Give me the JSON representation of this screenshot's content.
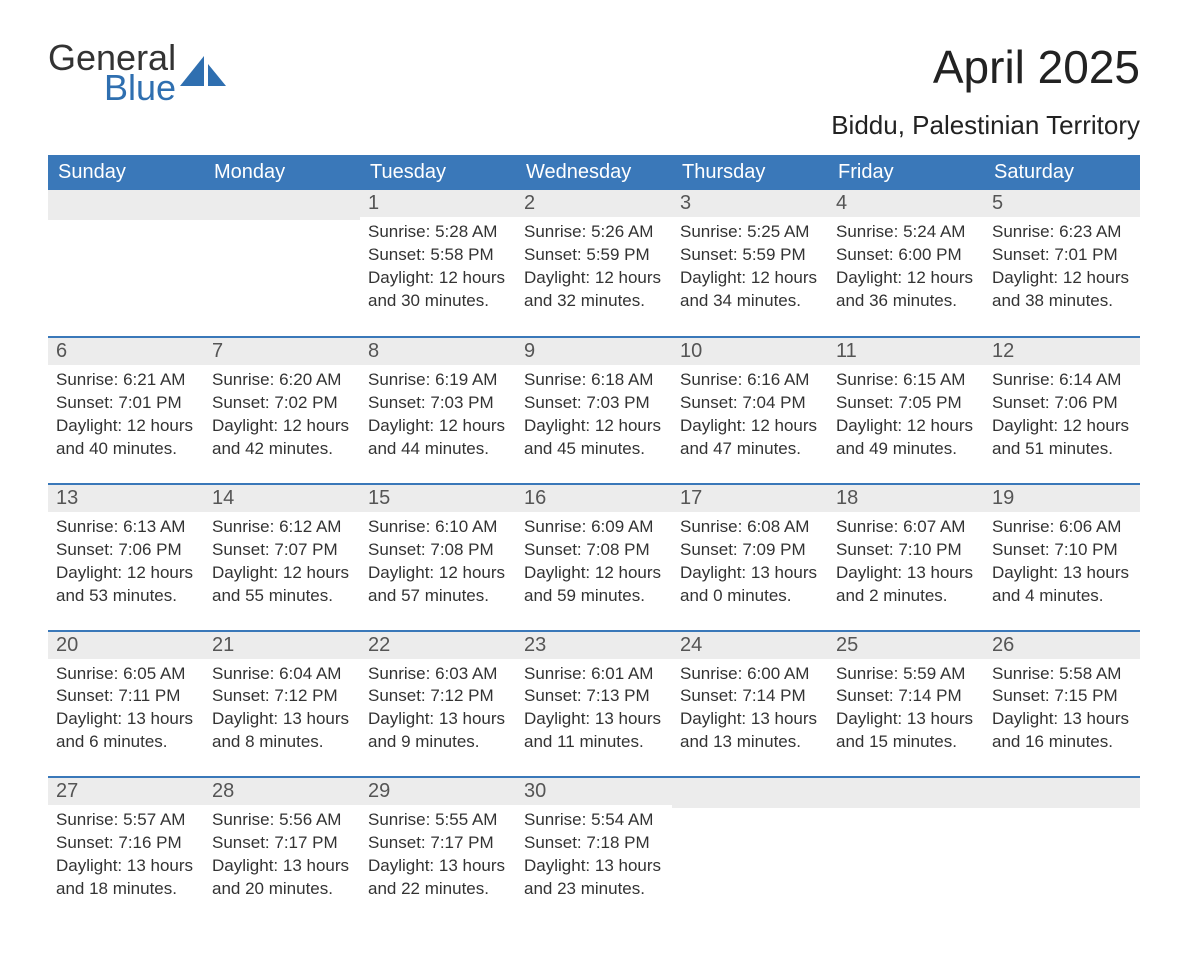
{
  "brand": {
    "word1": "General",
    "word2": "Blue",
    "accent_color": "#2f6fb0"
  },
  "title": "April 2025",
  "location": "Biddu, Palestinian Territory",
  "header_bg": "#3a78b9",
  "daynum_bg": "#ececec",
  "day_headers": [
    "Sunday",
    "Monday",
    "Tuesday",
    "Wednesday",
    "Thursday",
    "Friday",
    "Saturday"
  ],
  "weeks": [
    [
      null,
      null,
      {
        "n": "1",
        "sunrise": "5:28 AM",
        "sunset": "5:58 PM",
        "daylight": "12 hours and 30 minutes."
      },
      {
        "n": "2",
        "sunrise": "5:26 AM",
        "sunset": "5:59 PM",
        "daylight": "12 hours and 32 minutes."
      },
      {
        "n": "3",
        "sunrise": "5:25 AM",
        "sunset": "5:59 PM",
        "daylight": "12 hours and 34 minutes."
      },
      {
        "n": "4",
        "sunrise": "5:24 AM",
        "sunset": "6:00 PM",
        "daylight": "12 hours and 36 minutes."
      },
      {
        "n": "5",
        "sunrise": "6:23 AM",
        "sunset": "7:01 PM",
        "daylight": "12 hours and 38 minutes."
      }
    ],
    [
      {
        "n": "6",
        "sunrise": "6:21 AM",
        "sunset": "7:01 PM",
        "daylight": "12 hours and 40 minutes."
      },
      {
        "n": "7",
        "sunrise": "6:20 AM",
        "sunset": "7:02 PM",
        "daylight": "12 hours and 42 minutes."
      },
      {
        "n": "8",
        "sunrise": "6:19 AM",
        "sunset": "7:03 PM",
        "daylight": "12 hours and 44 minutes."
      },
      {
        "n": "9",
        "sunrise": "6:18 AM",
        "sunset": "7:03 PM",
        "daylight": "12 hours and 45 minutes."
      },
      {
        "n": "10",
        "sunrise": "6:16 AM",
        "sunset": "7:04 PM",
        "daylight": "12 hours and 47 minutes."
      },
      {
        "n": "11",
        "sunrise": "6:15 AM",
        "sunset": "7:05 PM",
        "daylight": "12 hours and 49 minutes."
      },
      {
        "n": "12",
        "sunrise": "6:14 AM",
        "sunset": "7:06 PM",
        "daylight": "12 hours and 51 minutes."
      }
    ],
    [
      {
        "n": "13",
        "sunrise": "6:13 AM",
        "sunset": "7:06 PM",
        "daylight": "12 hours and 53 minutes."
      },
      {
        "n": "14",
        "sunrise": "6:12 AM",
        "sunset": "7:07 PM",
        "daylight": "12 hours and 55 minutes."
      },
      {
        "n": "15",
        "sunrise": "6:10 AM",
        "sunset": "7:08 PM",
        "daylight": "12 hours and 57 minutes."
      },
      {
        "n": "16",
        "sunrise": "6:09 AM",
        "sunset": "7:08 PM",
        "daylight": "12 hours and 59 minutes."
      },
      {
        "n": "17",
        "sunrise": "6:08 AM",
        "sunset": "7:09 PM",
        "daylight": "13 hours and 0 minutes."
      },
      {
        "n": "18",
        "sunrise": "6:07 AM",
        "sunset": "7:10 PM",
        "daylight": "13 hours and 2 minutes."
      },
      {
        "n": "19",
        "sunrise": "6:06 AM",
        "sunset": "7:10 PM",
        "daylight": "13 hours and 4 minutes."
      }
    ],
    [
      {
        "n": "20",
        "sunrise": "6:05 AM",
        "sunset": "7:11 PM",
        "daylight": "13 hours and 6 minutes."
      },
      {
        "n": "21",
        "sunrise": "6:04 AM",
        "sunset": "7:12 PM",
        "daylight": "13 hours and 8 minutes."
      },
      {
        "n": "22",
        "sunrise": "6:03 AM",
        "sunset": "7:12 PM",
        "daylight": "13 hours and 9 minutes."
      },
      {
        "n": "23",
        "sunrise": "6:01 AM",
        "sunset": "7:13 PM",
        "daylight": "13 hours and 11 minutes."
      },
      {
        "n": "24",
        "sunrise": "6:00 AM",
        "sunset": "7:14 PM",
        "daylight": "13 hours and 13 minutes."
      },
      {
        "n": "25",
        "sunrise": "5:59 AM",
        "sunset": "7:14 PM",
        "daylight": "13 hours and 15 minutes."
      },
      {
        "n": "26",
        "sunrise": "5:58 AM",
        "sunset": "7:15 PM",
        "daylight": "13 hours and 16 minutes."
      }
    ],
    [
      {
        "n": "27",
        "sunrise": "5:57 AM",
        "sunset": "7:16 PM",
        "daylight": "13 hours and 18 minutes."
      },
      {
        "n": "28",
        "sunrise": "5:56 AM",
        "sunset": "7:17 PM",
        "daylight": "13 hours and 20 minutes."
      },
      {
        "n": "29",
        "sunrise": "5:55 AM",
        "sunset": "7:17 PM",
        "daylight": "13 hours and 22 minutes."
      },
      {
        "n": "30",
        "sunrise": "5:54 AM",
        "sunset": "7:18 PM",
        "daylight": "13 hours and 23 minutes."
      },
      null,
      null,
      null
    ]
  ],
  "labels": {
    "sunrise": "Sunrise: ",
    "sunset": "Sunset: ",
    "daylight": "Daylight: "
  }
}
